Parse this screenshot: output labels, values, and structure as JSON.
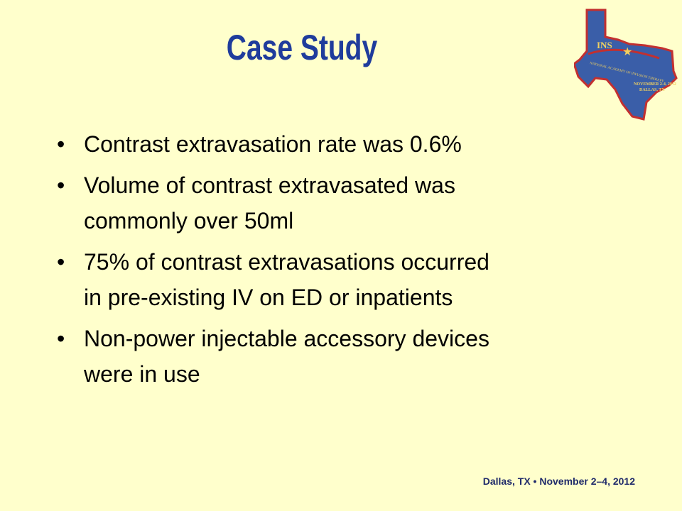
{
  "title": "Case Study",
  "bullets": [
    [
      "Contrast extravasation rate was 0.6%"
    ],
    [
      "Volume of contrast extravasated was",
      "commonly over 50ml"
    ],
    [
      "75% of contrast extravasations occurred",
      "in pre-existing IV on ED or inpatients"
    ],
    [
      "Non-power injectable accessory devices",
      "were in use"
    ]
  ],
  "logo": {
    "acronym": "INS",
    "organization": "NATIONAL ACADEMY OF INFUSION THERAPY",
    "dates": "NOVEMBER 2-4, 2012",
    "place": "DALLAS, TX"
  },
  "footer": "Dallas, TX • November 2–4, 2012"
}
